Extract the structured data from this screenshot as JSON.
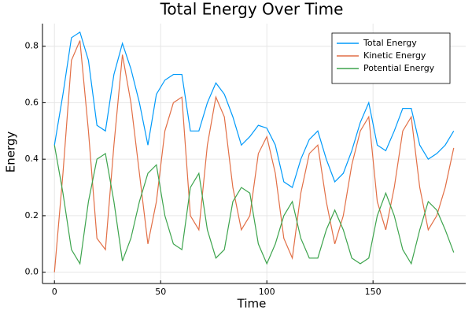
{
  "chart_data": {
    "type": "line",
    "title": "Total Energy Over Time",
    "x_label": "Time",
    "y_label": "Energy",
    "x": [
      0,
      4,
      8,
      12,
      16,
      20,
      24,
      28,
      32,
      36,
      40,
      44,
      48,
      52,
      56,
      60,
      64,
      68,
      72,
      76,
      80,
      84,
      88,
      92,
      96,
      100,
      104,
      108,
      112,
      116,
      120,
      124,
      128,
      132,
      136,
      140,
      144,
      148,
      152,
      156,
      160,
      164,
      168,
      172,
      176,
      180,
      184,
      188
    ],
    "series": [
      {
        "name": "Total Energy",
        "color": "#009afa",
        "values": [
          0.45,
          0.63,
          0.83,
          0.85,
          0.75,
          0.52,
          0.5,
          0.7,
          0.81,
          0.72,
          0.6,
          0.45,
          0.63,
          0.68,
          0.7,
          0.7,
          0.5,
          0.5,
          0.6,
          0.67,
          0.63,
          0.55,
          0.45,
          0.48,
          0.52,
          0.51,
          0.45,
          0.32,
          0.3,
          0.4,
          0.47,
          0.5,
          0.4,
          0.32,
          0.35,
          0.43,
          0.53,
          0.6,
          0.45,
          0.43,
          0.5,
          0.58,
          0.58,
          0.45,
          0.4,
          0.42,
          0.45,
          0.5
        ]
      },
      {
        "name": "Kinetic Energy",
        "color": "#e26f46",
        "values": [
          0,
          0.35,
          0.75,
          0.82,
          0.5,
          0.12,
          0.08,
          0.45,
          0.77,
          0.6,
          0.35,
          0.1,
          0.25,
          0.5,
          0.6,
          0.62,
          0.2,
          0.15,
          0.45,
          0.62,
          0.55,
          0.3,
          0.15,
          0.2,
          0.42,
          0.48,
          0.35,
          0.12,
          0.05,
          0.28,
          0.42,
          0.45,
          0.25,
          0.1,
          0.2,
          0.38,
          0.5,
          0.55,
          0.25,
          0.15,
          0.3,
          0.5,
          0.55,
          0.3,
          0.15,
          0.2,
          0.3,
          0.44
        ]
      },
      {
        "name": "Potential Energy",
        "color": "#3da44d",
        "values": [
          0.45,
          0.28,
          0.08,
          0.03,
          0.25,
          0.4,
          0.42,
          0.25,
          0.04,
          0.12,
          0.25,
          0.35,
          0.38,
          0.2,
          0.1,
          0.08,
          0.3,
          0.35,
          0.15,
          0.05,
          0.08,
          0.25,
          0.3,
          0.28,
          0.1,
          0.03,
          0.1,
          0.2,
          0.25,
          0.12,
          0.05,
          0.05,
          0.15,
          0.22,
          0.15,
          0.05,
          0.03,
          0.05,
          0.2,
          0.28,
          0.2,
          0.08,
          0.03,
          0.15,
          0.25,
          0.22,
          0.15,
          0.07
        ]
      }
    ],
    "xlim": [
      -5.64,
      193.64
    ],
    "ylim": [
      -0.04,
      0.88
    ],
    "xticks": [
      0,
      50,
      100,
      150
    ],
    "yticks": [
      {
        "value": 0,
        "label": "0.0"
      },
      0.2,
      0.4,
      0.6,
      0.8
    ],
    "grid": true,
    "legend": "top-right"
  }
}
